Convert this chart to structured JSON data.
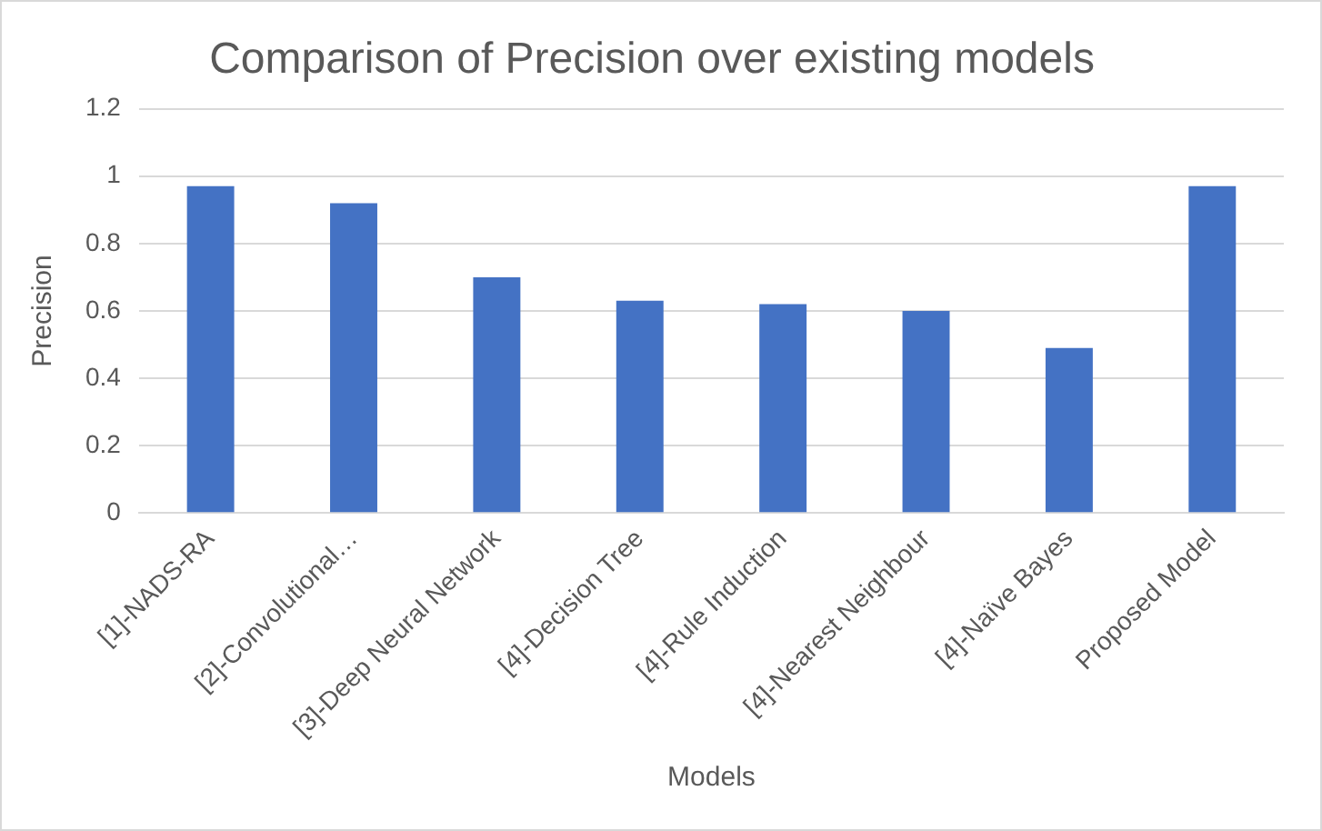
{
  "chart_data": {
    "type": "bar",
    "title": "Comparison of Precision over existing models",
    "xlabel": "Models",
    "ylabel": "Precision",
    "categories": [
      "[1]-NADS-RA",
      "[2]-Convolutional…",
      "[3]-Deep Neural Network",
      "[4]-Decision Tree",
      "[4]-Rule Induction",
      "[4]-Nearest Neighbour",
      "[4]-Naïve Bayes",
      "Proposed Model"
    ],
    "values": [
      0.97,
      0.92,
      0.7,
      0.63,
      0.62,
      0.6,
      0.49,
      0.97
    ],
    "color": "#4472c4",
    "ylim": [
      0,
      1.2
    ],
    "yticks": [
      0,
      0.2,
      0.4,
      0.6,
      0.8,
      1,
      1.2
    ],
    "grid": "y"
  }
}
